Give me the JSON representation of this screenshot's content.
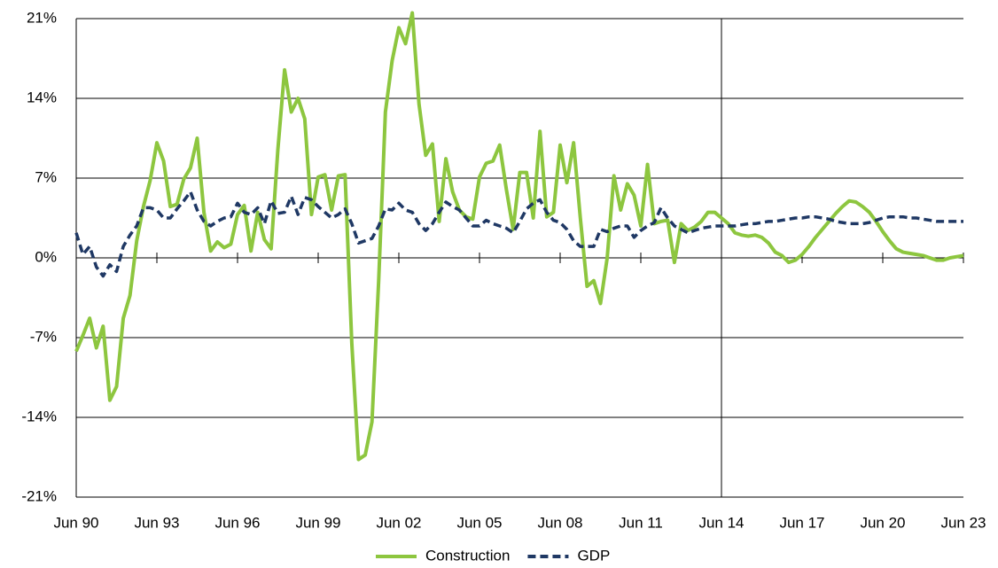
{
  "chart_data": {
    "type": "line",
    "categories": [
      "Jun 90",
      null,
      null,
      null,
      null,
      null,
      null,
      null,
      null,
      null,
      null,
      null,
      "Jun 93",
      null,
      null,
      null,
      null,
      null,
      null,
      null,
      null,
      null,
      null,
      null,
      "Jun 96",
      null,
      null,
      null,
      null,
      null,
      null,
      null,
      null,
      null,
      null,
      null,
      "Jun 99",
      null,
      null,
      null,
      null,
      null,
      null,
      null,
      null,
      null,
      null,
      null,
      "Jun 02",
      null,
      null,
      null,
      null,
      null,
      null,
      null,
      null,
      null,
      null,
      null,
      "Jun 05",
      null,
      null,
      null,
      null,
      null,
      null,
      null,
      null,
      null,
      null,
      null,
      "Jun 08",
      null,
      null,
      null,
      null,
      null,
      null,
      null,
      null,
      null,
      null,
      null,
      "Jun 11",
      null,
      null,
      null,
      null,
      null,
      null,
      null,
      null,
      null,
      null,
      null,
      "Jun 14",
      null,
      null,
      null,
      null,
      null,
      null,
      null,
      null,
      null,
      null,
      null,
      "Jun 17",
      null,
      null,
      null,
      null,
      null,
      null,
      null,
      null,
      null,
      null,
      null,
      "Jun 20",
      null,
      null,
      null,
      null,
      null,
      null,
      null,
      null,
      null,
      null,
      null,
      "Jun 23"
    ],
    "series": [
      {
        "name": "Construction",
        "color": "#8dc63f",
        "values": [
          -8.2,
          -6.8,
          -5.3,
          -7.9,
          -6.0,
          -12.5,
          -11.3,
          -5.3,
          -3.3,
          1.5,
          4.5,
          6.8,
          10.1,
          8.5,
          4.5,
          4.7,
          6.9,
          7.9,
          10.5,
          4.0,
          0.6,
          1.4,
          0.9,
          1.2,
          3.8,
          4.6,
          0.6,
          4.0,
          1.6,
          0.8,
          9.5,
          16.5,
          12.8,
          14.0,
          12.2,
          3.8,
          7.1,
          7.3,
          4.2,
          7.2,
          7.3,
          -7.5,
          -17.7,
          -17.3,
          -14.4,
          -2.0,
          12.8,
          17.3,
          20.2,
          18.8,
          21.5,
          13.5,
          9.0,
          10.0,
          3.2,
          8.7,
          5.8,
          4.2,
          3.6,
          3.4,
          7.1,
          8.3,
          8.5,
          9.9,
          6.0,
          2.5,
          7.5,
          7.5,
          3.5,
          11.1,
          3.6,
          4.0,
          9.9,
          6.6,
          10.1,
          3.5,
          -2.5,
          -2.0,
          -4.0,
          0.0,
          7.2,
          4.2,
          6.5,
          5.5,
          2.8,
          8.2,
          3.0,
          3.2,
          3.3,
          -0.4,
          3.0,
          2.4,
          2.7,
          3.2,
          4.0,
          4.0,
          3.5,
          3.0,
          2.2,
          2.0,
          1.9,
          2.0,
          1.8,
          1.3,
          0.5,
          0.2,
          -0.4,
          -0.2,
          0.3,
          1.0,
          1.8,
          2.5,
          3.2,
          3.9,
          4.5,
          5.0,
          4.9,
          4.5,
          4.0,
          3.2,
          2.3,
          1.5,
          0.8,
          0.5,
          0.4,
          0.3,
          0.2,
          0.0,
          -0.2,
          -0.2,
          0.0,
          0.1,
          0.2
        ]
      },
      {
        "name": "GDP",
        "color": "#1f3864",
        "dashed": true,
        "values": [
          2.2,
          0.3,
          1.0,
          -0.8,
          -1.6,
          -0.6,
          -1.2,
          1.0,
          2.0,
          2.8,
          4.4,
          4.4,
          4.2,
          3.5,
          3.5,
          4.3,
          5.0,
          5.8,
          4.2,
          3.2,
          2.8,
          3.2,
          3.5,
          3.6,
          4.8,
          4.0,
          3.8,
          4.4,
          3.0,
          5.0,
          3.9,
          4.0,
          5.4,
          3.8,
          5.3,
          5.1,
          4.5,
          4.0,
          3.5,
          3.8,
          4.3,
          3.0,
          1.3,
          1.5,
          1.7,
          2.8,
          4.3,
          4.2,
          4.8,
          4.2,
          4.0,
          3.0,
          2.4,
          3.0,
          4.0,
          4.9,
          4.5,
          4.2,
          3.5,
          2.8,
          2.8,
          3.3,
          3.0,
          2.8,
          2.6,
          2.2,
          3.2,
          4.3,
          4.8,
          5.1,
          4.0,
          3.3,
          3.1,
          2.5,
          1.5,
          1.0,
          1.0,
          1.0,
          2.5,
          2.3,
          2.6,
          2.8,
          2.8,
          1.8,
          2.4,
          2.8,
          3.1,
          4.4,
          3.5,
          2.8,
          2.5,
          2.2,
          2.4,
          2.6,
          2.7,
          2.8,
          2.8,
          2.8,
          2.8,
          2.9,
          3.0,
          3.0,
          3.1,
          3.2,
          3.2,
          3.3,
          3.4,
          3.5,
          3.5,
          3.6,
          3.6,
          3.5,
          3.4,
          3.2,
          3.1,
          3.0,
          3.0,
          3.0,
          3.1,
          3.3,
          3.5,
          3.6,
          3.6,
          3.6,
          3.5,
          3.5,
          3.4,
          3.3,
          3.2,
          3.2,
          3.2,
          3.2,
          3.2
        ]
      }
    ],
    "ylim": [
      -21,
      21
    ],
    "yticks": [
      {
        "value": -21,
        "label": "-21%"
      },
      {
        "value": -14,
        "label": "-14%"
      },
      {
        "value": -7,
        "label": "-7%"
      },
      {
        "value": 0,
        "label": "0%"
      },
      {
        "value": 7,
        "label": "7%"
      },
      {
        "value": 14,
        "label": "14%"
      },
      {
        "value": 21,
        "label": "21%"
      }
    ],
    "grid": true,
    "legend": "bottom"
  }
}
